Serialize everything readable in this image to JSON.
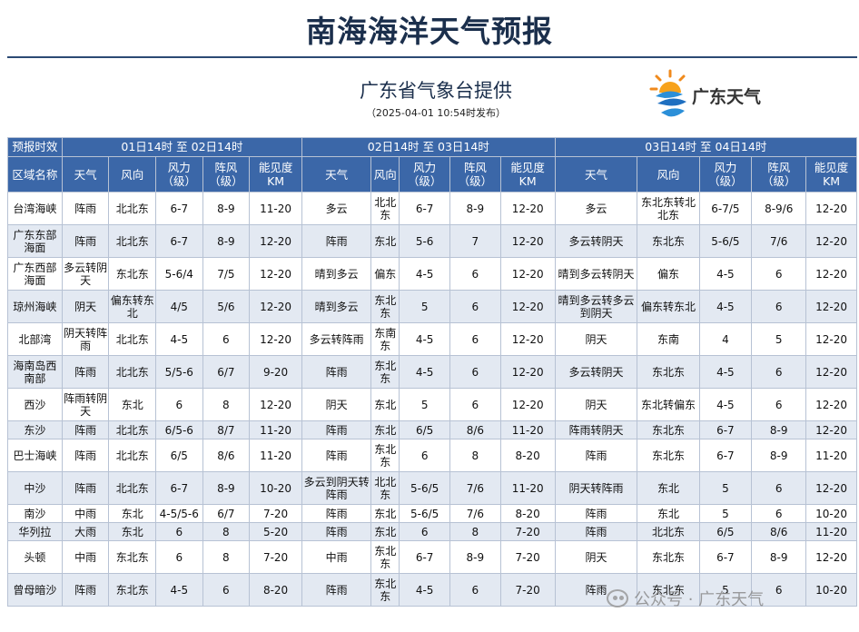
{
  "header": {
    "title": "南海海洋天气预报",
    "subtitle": "广东省气象台提供",
    "pubtime": "（2025-04-01 10:54时发布）",
    "logo_text": "广东天气"
  },
  "table": {
    "corner_label": "预报时效",
    "region_header": "区域名称",
    "periods": [
      "01日14时 至 02日14时",
      "02日14时 至 03日14时",
      "03日14时 至 04日14时"
    ],
    "cols": [
      "天气",
      "风向",
      "风力\n（级）",
      "阵风\n（级）",
      "能见度\nKM"
    ],
    "rows": [
      {
        "region": "台湾海峡",
        "p": [
          [
            "阵雨",
            "北北东",
            "6-7",
            "8-9",
            "11-20"
          ],
          [
            "多云",
            "北北东",
            "6-7",
            "8-9",
            "12-20"
          ],
          [
            "多云",
            "东北东转北北东",
            "6-7/5",
            "8-9/6",
            "12-20"
          ]
        ]
      },
      {
        "region": "广东东部海面",
        "p": [
          [
            "阵雨",
            "北北东",
            "6-7",
            "8-9",
            "12-20"
          ],
          [
            "阵雨",
            "东北",
            "5-6",
            "7",
            "12-20"
          ],
          [
            "多云转阴天",
            "东北东",
            "5-6/5",
            "7/6",
            "12-20"
          ]
        ]
      },
      {
        "region": "广东西部海面",
        "p": [
          [
            "多云转阴天",
            "东北东",
            "5-6/4",
            "7/5",
            "12-20"
          ],
          [
            "晴到多云",
            "偏东",
            "4-5",
            "6",
            "12-20"
          ],
          [
            "晴到多云转阴天",
            "偏东",
            "4-5",
            "6",
            "12-20"
          ]
        ]
      },
      {
        "region": "琼州海峡",
        "p": [
          [
            "阴天",
            "偏东转东北",
            "4/5",
            "5/6",
            "12-20"
          ],
          [
            "晴到多云",
            "东北东",
            "5",
            "6",
            "12-20"
          ],
          [
            "晴到多云转多云到阴天",
            "偏东转东北",
            "4-5",
            "6",
            "12-20"
          ]
        ]
      },
      {
        "region": "北部湾",
        "p": [
          [
            "阴天转阵雨",
            "北北东",
            "4-5",
            "6",
            "12-20"
          ],
          [
            "多云转阵雨",
            "东南东",
            "4-5",
            "6",
            "12-20"
          ],
          [
            "阴天",
            "东南",
            "4",
            "5",
            "12-20"
          ]
        ]
      },
      {
        "region": "海南岛西南部",
        "p": [
          [
            "阵雨",
            "北北东",
            "5/5-6",
            "6/7",
            "9-20"
          ],
          [
            "阵雨",
            "东北东",
            "4-5",
            "6",
            "12-20"
          ],
          [
            "多云转阴天",
            "东北东",
            "4-5",
            "6",
            "12-20"
          ]
        ]
      },
      {
        "region": "西沙",
        "p": [
          [
            "阵雨转阴天",
            "东北",
            "6",
            "8",
            "12-20"
          ],
          [
            "阴天",
            "东北",
            "5",
            "6",
            "12-20"
          ],
          [
            "阴天",
            "东北转偏东",
            "4-5",
            "6",
            "12-20"
          ]
        ]
      },
      {
        "region": "东沙",
        "p": [
          [
            "阵雨",
            "北北东",
            "6/5-6",
            "8/7",
            "11-20"
          ],
          [
            "阵雨",
            "东北",
            "6/5",
            "8/6",
            "11-20"
          ],
          [
            "阵雨转阴天",
            "东北东",
            "6-7",
            "8-9",
            "12-20"
          ]
        ]
      },
      {
        "region": "巴士海峡",
        "p": [
          [
            "阵雨",
            "北北东",
            "6/5",
            "8/6",
            "11-20"
          ],
          [
            "阵雨",
            "东北东",
            "6",
            "8",
            "8-20"
          ],
          [
            "阵雨",
            "东北东",
            "6-7",
            "8-9",
            "11-20"
          ]
        ]
      },
      {
        "region": "中沙",
        "p": [
          [
            "阵雨",
            "北北东",
            "6-7",
            "8-9",
            "10-20"
          ],
          [
            "多云到阴天转阵雨",
            "北北东",
            "5-6/5",
            "7/6",
            "11-20"
          ],
          [
            "阴天转阵雨",
            "东北",
            "5",
            "6",
            "12-20"
          ]
        ]
      },
      {
        "region": "南沙",
        "p": [
          [
            "中雨",
            "东北",
            "4-5/5-6",
            "6/7",
            "7-20"
          ],
          [
            "阵雨",
            "东北",
            "5-6/5",
            "7/6",
            "8-20"
          ],
          [
            "阵雨",
            "东北",
            "5",
            "6",
            "10-20"
          ]
        ]
      },
      {
        "region": "华列拉",
        "p": [
          [
            "大雨",
            "东北",
            "6",
            "8",
            "5-20"
          ],
          [
            "阵雨",
            "东北",
            "6",
            "8",
            "7-20"
          ],
          [
            "阵雨",
            "北北东",
            "6/5",
            "8/6",
            "11-20"
          ]
        ]
      },
      {
        "region": "头顿",
        "p": [
          [
            "中雨",
            "东北东",
            "6",
            "8",
            "7-20"
          ],
          [
            "中雨",
            "东北东",
            "6-7",
            "8-9",
            "7-20"
          ],
          [
            "阴天",
            "东北东",
            "6-7",
            "8-9",
            "12-20"
          ]
        ]
      },
      {
        "region": "曾母暗沙",
        "p": [
          [
            "阵雨",
            "东北东",
            "4-5",
            "6",
            "8-20"
          ],
          [
            "阵雨",
            "东北东",
            "4-5",
            "6",
            "7-20"
          ],
          [
            "阵雨",
            "东北东",
            "5",
            "6",
            "10-20"
          ]
        ]
      }
    ]
  },
  "watermark": {
    "text": "公众号 · 广东天气"
  },
  "colors": {
    "header_bg": "#3b67a8",
    "title": "#1b2f4c",
    "stripe": "#e3e9f2"
  },
  "icons": {
    "logo": "guangdong-weather-logo-icon",
    "watermark": "wechat-icon"
  }
}
